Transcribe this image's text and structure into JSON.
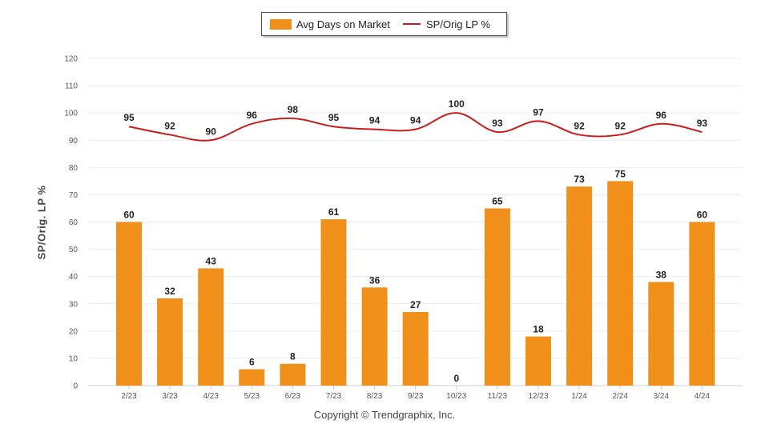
{
  "chart_data": {
    "type": "bar+line",
    "categories": [
      "2/23",
      "3/23",
      "4/23",
      "5/23",
      "6/23",
      "7/23",
      "8/23",
      "9/23",
      "10/23",
      "11/23",
      "12/23",
      "1/24",
      "2/24",
      "3/24",
      "4/24"
    ],
    "series": [
      {
        "name": "Avg Days on Market",
        "type": "bar",
        "color": "#f0901b",
        "values": [
          60,
          32,
          43,
          6,
          8,
          61,
          36,
          27,
          0,
          65,
          18,
          73,
          75,
          38,
          60
        ]
      },
      {
        "name": "SP/Orig LP %",
        "type": "line",
        "color": "#c81c1c",
        "values": [
          95,
          92,
          90,
          96,
          98,
          95,
          94,
          94,
          100,
          93,
          97,
          92,
          92,
          96,
          93
        ]
      }
    ],
    "ylabel": "SP/Orig. LP %",
    "ylim": [
      0,
      120
    ],
    "yticks": [
      0,
      10,
      20,
      30,
      40,
      50,
      60,
      70,
      80,
      90,
      100,
      110,
      120
    ],
    "grid": true,
    "legend": "top-center"
  },
  "legend": {
    "bar_label": "Avg Days on Market",
    "line_label": "SP/Orig LP %"
  },
  "footer": {
    "copyright": "Copyright © Trendgraphix, Inc."
  }
}
